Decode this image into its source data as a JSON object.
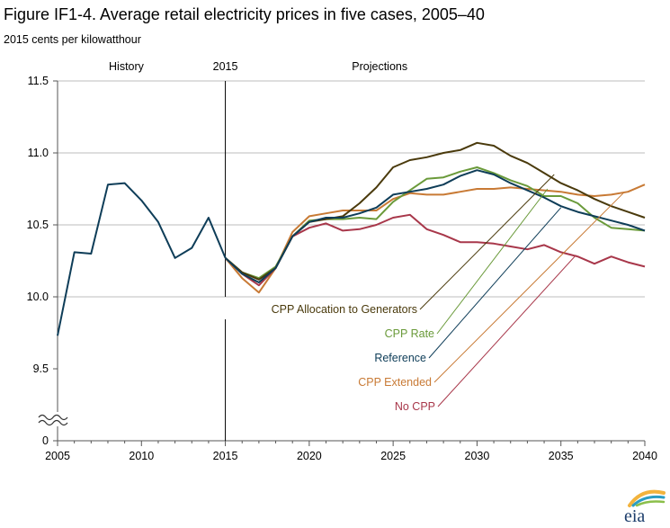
{
  "chart_data": {
    "type": "line",
    "title": "Figure IF1-4. Average retail electricity prices in five cases, 2005–40",
    "subtitle": "2015 cents per kilowatthour",
    "xlabel": "",
    "ylabel": "",
    "xlim": [
      2005,
      2040
    ],
    "ylim": [
      9.0,
      11.5
    ],
    "y_axis_break": true,
    "x_ticks": [
      "2005",
      "2010",
      "2015",
      "2020",
      "2025",
      "2030",
      "2035",
      "2040"
    ],
    "y_ticks": [
      "0",
      "9.5",
      "10.0",
      "10.5",
      "11.0",
      "11.5"
    ],
    "grid": "horizontal",
    "region_labels": [
      "History",
      "2015",
      "Projections"
    ],
    "history": {
      "name": "History",
      "color": "#0e3d58",
      "x": [
        2005,
        2006,
        2007,
        2008,
        2009,
        2010,
        2011,
        2012,
        2013,
        2014,
        2015
      ],
      "y": [
        9.73,
        10.31,
        10.3,
        10.78,
        10.79,
        10.67,
        10.52,
        10.27,
        10.34,
        10.55,
        10.27
      ]
    },
    "series": [
      {
        "name": "CPP Allocation to Generators",
        "color": "#4a3a0c",
        "x": [
          2015,
          2016,
          2017,
          2018,
          2019,
          2020,
          2021,
          2022,
          2023,
          2024,
          2025,
          2026,
          2027,
          2028,
          2029,
          2030,
          2031,
          2032,
          2033,
          2034,
          2035,
          2036,
          2037,
          2038,
          2039,
          2040
        ],
        "y": [
          10.27,
          10.17,
          10.12,
          10.2,
          10.42,
          10.52,
          10.54,
          10.56,
          10.65,
          10.76,
          10.9,
          10.95,
          10.97,
          11.0,
          11.02,
          11.07,
          11.05,
          10.98,
          10.93,
          10.86,
          10.79,
          10.74,
          10.68,
          10.63,
          10.59,
          10.55
        ]
      },
      {
        "name": "CPP Rate",
        "color": "#6a9a3a",
        "x": [
          2015,
          2016,
          2017,
          2018,
          2019,
          2020,
          2021,
          2022,
          2023,
          2024,
          2025,
          2026,
          2027,
          2028,
          2029,
          2030,
          2031,
          2032,
          2033,
          2034,
          2035,
          2036,
          2037,
          2038,
          2039,
          2040
        ],
        "y": [
          10.27,
          10.17,
          10.13,
          10.21,
          10.42,
          10.53,
          10.54,
          10.54,
          10.55,
          10.54,
          10.66,
          10.74,
          10.82,
          10.83,
          10.87,
          10.9,
          10.86,
          10.81,
          10.77,
          10.7,
          10.7,
          10.65,
          10.55,
          10.48,
          10.47,
          10.46
        ]
      },
      {
        "name": "Reference",
        "color": "#0e3d58",
        "x": [
          2015,
          2016,
          2017,
          2018,
          2019,
          2020,
          2021,
          2022,
          2023,
          2024,
          2025,
          2026,
          2027,
          2028,
          2029,
          2030,
          2031,
          2032,
          2033,
          2034,
          2035,
          2036,
          2037,
          2038,
          2039,
          2040
        ],
        "y": [
          10.27,
          10.16,
          10.1,
          10.2,
          10.42,
          10.52,
          10.55,
          10.55,
          10.58,
          10.62,
          10.71,
          10.73,
          10.75,
          10.78,
          10.84,
          10.88,
          10.85,
          10.79,
          10.74,
          10.69,
          10.63,
          10.59,
          10.56,
          10.53,
          10.5,
          10.46
        ]
      },
      {
        "name": "CPP Extended",
        "color": "#c87a35",
        "x": [
          2015,
          2016,
          2017,
          2018,
          2019,
          2020,
          2021,
          2022,
          2023,
          2024,
          2025,
          2026,
          2027,
          2028,
          2029,
          2030,
          2031,
          2032,
          2033,
          2034,
          2035,
          2036,
          2037,
          2038,
          2039,
          2040
        ],
        "y": [
          10.27,
          10.13,
          10.03,
          10.2,
          10.45,
          10.56,
          10.58,
          10.6,
          10.6,
          10.6,
          10.68,
          10.72,
          10.71,
          10.71,
          10.73,
          10.75,
          10.75,
          10.76,
          10.75,
          10.74,
          10.73,
          10.71,
          10.7,
          10.71,
          10.73,
          10.78
        ]
      },
      {
        "name": "No CPP",
        "color": "#a8374a",
        "x": [
          2015,
          2016,
          2017,
          2018,
          2019,
          2020,
          2021,
          2022,
          2023,
          2024,
          2025,
          2026,
          2027,
          2028,
          2029,
          2030,
          2031,
          2032,
          2033,
          2034,
          2035,
          2036,
          2037,
          2038,
          2039,
          2040
        ],
        "y": [
          10.27,
          10.16,
          10.08,
          10.2,
          10.42,
          10.48,
          10.51,
          10.46,
          10.47,
          10.5,
          10.55,
          10.57,
          10.47,
          10.43,
          10.38,
          10.38,
          10.37,
          10.35,
          10.33,
          10.36,
          10.31,
          10.28,
          10.23,
          10.28,
          10.24,
          10.21
        ]
      }
    ]
  },
  "logo": {
    "text": "eia"
  }
}
